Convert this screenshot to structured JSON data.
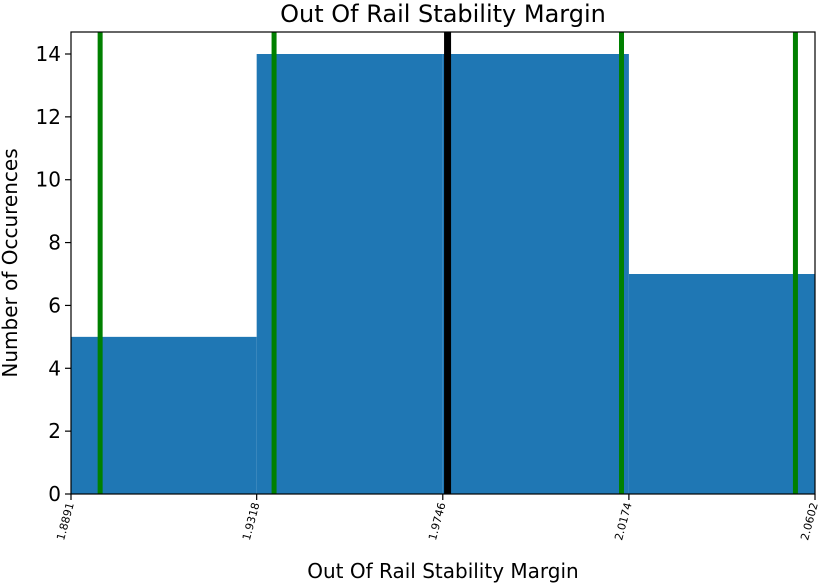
{
  "chart_data": {
    "type": "bar",
    "title": "Out Of Rail Stability Margin",
    "xlabel": "Out Of Rail Stability Margin",
    "ylabel": "Number of Occurences",
    "bin_edges": [
      1.8891,
      1.9318,
      1.9746,
      2.0174,
      2.0602
    ],
    "values": [
      5,
      14,
      14,
      7
    ],
    "xlim": [
      1.8891,
      2.0602
    ],
    "ylim": [
      0,
      14.7
    ],
    "xticks": [
      1.8891,
      1.9318,
      1.9746,
      2.0174,
      2.0602
    ],
    "xtick_labels": [
      "1.8891",
      "1.9318",
      "1.9746",
      "2.0174",
      "2.0602"
    ],
    "yticks": [
      0,
      2,
      4,
      6,
      8,
      10,
      12,
      14
    ],
    "ytick_labels": [
      "0",
      "2",
      "4",
      "6",
      "8",
      "10",
      "12",
      "14"
    ],
    "vlines": [
      {
        "x": 1.8958,
        "color": "#008000",
        "role": "green"
      },
      {
        "x": 1.9358,
        "color": "#008000",
        "role": "green"
      },
      {
        "x": 1.9757,
        "color": "#000000",
        "role": "black"
      },
      {
        "x": 2.0157,
        "color": "#008000",
        "role": "green"
      },
      {
        "x": 2.0557,
        "color": "#008000",
        "role": "green"
      }
    ],
    "bar_color": "#1f77b4",
    "grid": false,
    "legend": "none"
  }
}
